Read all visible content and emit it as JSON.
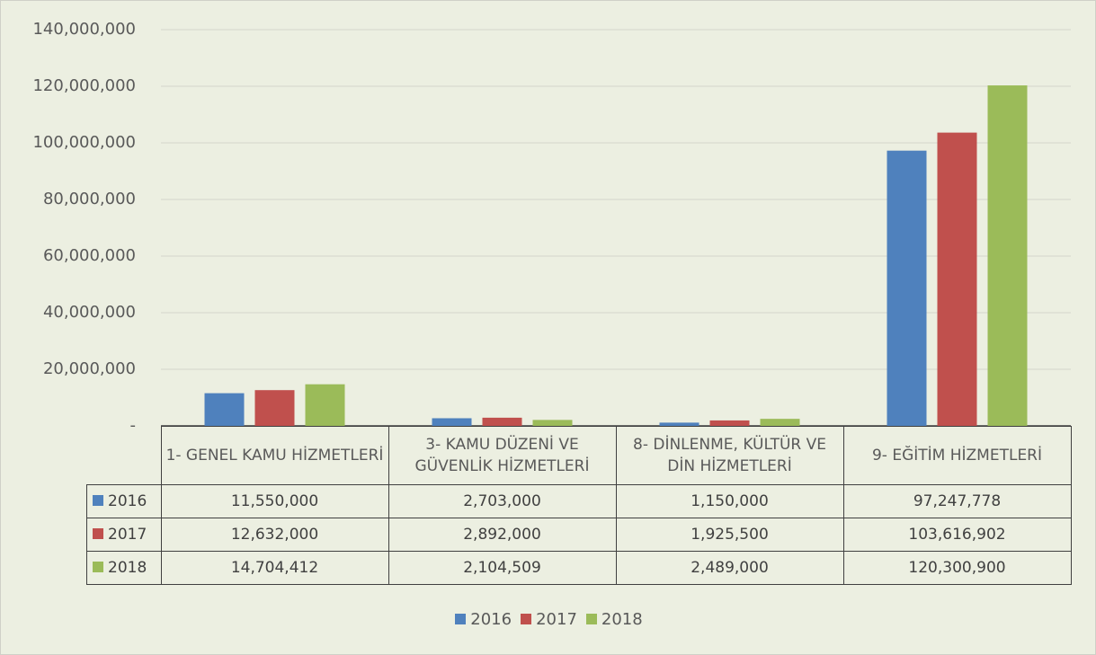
{
  "chart_data": {
    "type": "bar",
    "categories": [
      "1- GENEL KAMU HİZMETLERİ",
      "3- KAMU DÜZENİ VE GÜVENLİK HİZMETLERİ",
      "8- DİNLENME, KÜLTÜR VE DİN HİZMETLERİ",
      "9- EĞİTİM HİZMETLERİ"
    ],
    "series": [
      {
        "name": "2016",
        "color": "#4f81bd",
        "values": [
          11550000,
          2703000,
          1150000,
          97247778
        ],
        "value_labels": [
          "11,550,000",
          "2,703,000",
          "1,150,000",
          "97,247,778"
        ]
      },
      {
        "name": "2017",
        "color": "#c0504d",
        "values": [
          12632000,
          2892000,
          1925500,
          103616902
        ],
        "value_labels": [
          "12,632,000",
          "2,892,000",
          "1,925,500",
          "103,616,902"
        ]
      },
      {
        "name": "2018",
        "color": "#9bbb59",
        "values": [
          14704412,
          2104509,
          2489000,
          120300900
        ],
        "value_labels": [
          "14,704,412",
          "2,104,509",
          "2,489,000",
          "120,300,900"
        ]
      }
    ],
    "ylim": [
      0,
      140000000
    ],
    "yticks": [
      {
        "value": 0,
        "label": "-"
      },
      {
        "value": 20000000,
        "label": "20,000,000"
      },
      {
        "value": 40000000,
        "label": "40,000,000"
      },
      {
        "value": 60000000,
        "label": "60,000,000"
      },
      {
        "value": 80000000,
        "label": "80,000,000"
      },
      {
        "value": 100000000,
        "label": "100,000,000"
      },
      {
        "value": 120000000,
        "label": "120,000,000"
      },
      {
        "value": 140000000,
        "label": "140,000,000"
      }
    ],
    "grid": true,
    "legend": "bottom"
  }
}
